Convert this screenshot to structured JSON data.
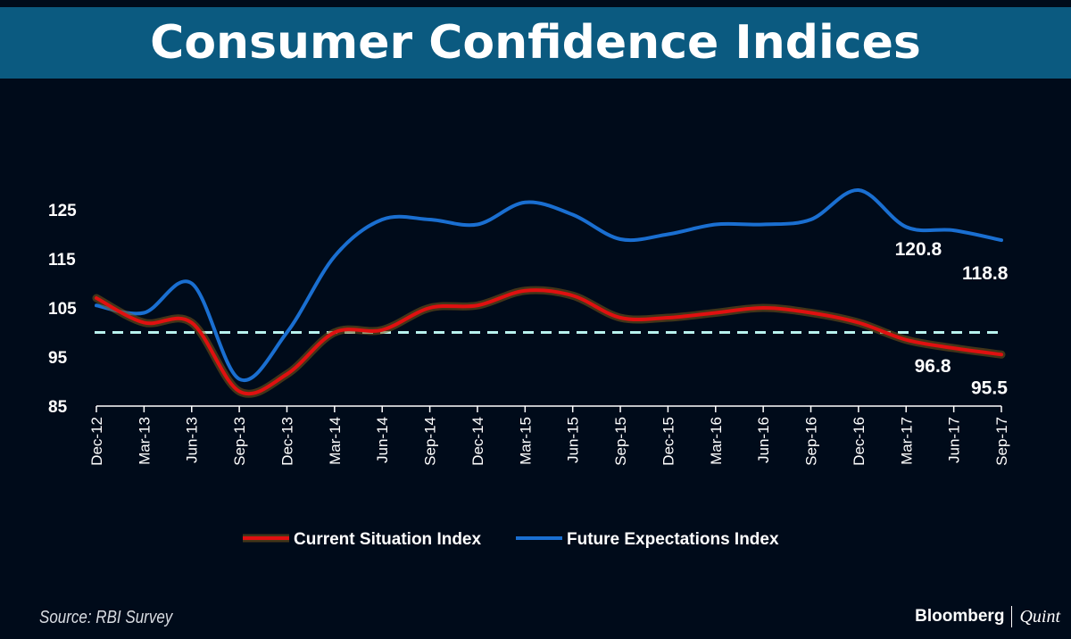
{
  "header": {
    "title": "Consumer Confidence Indices"
  },
  "footer": {
    "source": "Source: RBI Survey",
    "brand_primary": "Bloomberg",
    "brand_secondary": "Quint"
  },
  "colors": {
    "current": "#e01010",
    "current_glow": "#7a5a1a",
    "future": "#1a6fd1",
    "reference": "#b8f2ee"
  },
  "chart_data": {
    "type": "line",
    "title": "Consumer Confidence Indices",
    "xlabel": "",
    "ylabel": "",
    "ylim": [
      85,
      130
    ],
    "yticks": [
      85,
      95,
      105,
      115,
      125
    ],
    "reference_line": 100,
    "categories": [
      "Dec-12",
      "Mar-13",
      "Jun-13",
      "Sep-13",
      "Dec-13",
      "Mar-14",
      "Jun-14",
      "Sep-14",
      "Dec-14",
      "Mar-15",
      "Jun-15",
      "Sep-15",
      "Dec-15",
      "Mar-16",
      "Jun-16",
      "Sep-16",
      "Dec-16",
      "Mar-17",
      "Jun-17",
      "Sep-17"
    ],
    "legend": "bottom",
    "series": [
      {
        "name": "Current Situation Index",
        "values": [
          107.0,
          102.0,
          102.0,
          88.0,
          91.5,
          100.0,
          100.5,
          105.0,
          105.5,
          108.5,
          107.5,
          103.0,
          103.0,
          104.0,
          105.0,
          104.0,
          102.0,
          98.5,
          96.8,
          95.5
        ]
      },
      {
        "name": "Future Expectations Index",
        "values": [
          105.5,
          104.0,
          110.0,
          90.5,
          100.0,
          115.5,
          123.0,
          123.0,
          122.0,
          126.5,
          124.0,
          119.0,
          120.0,
          122.0,
          122.0,
          123.0,
          129.0,
          121.5,
          120.8,
          118.8
        ]
      }
    ],
    "annotations": [
      {
        "text": "120.8",
        "category": "Jun-17",
        "value": 120.8
      },
      {
        "text": "118.8",
        "category": "Sep-17",
        "value": 118.8
      },
      {
        "text": "96.8",
        "category": "Jun-17",
        "value": 96.8
      },
      {
        "text": "95.5",
        "category": "Sep-17",
        "value": 95.5
      }
    ]
  }
}
